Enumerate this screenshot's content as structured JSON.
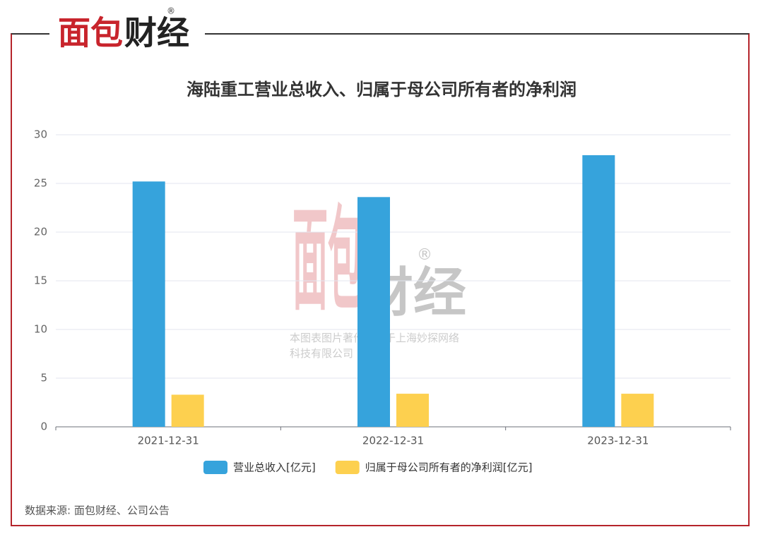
{
  "brand": [
    "面包",
    "财经"
  ],
  "brand_mark": "®",
  "watermark": "本图表图片著作权属于上海妙探网络科技有限公司",
  "source": "数据来源: 面包财经、公司公告",
  "chart_data": {
    "type": "bar",
    "title": "海陆重工营业总收入、归属于母公司所有者的净利润",
    "categories": [
      "2021-12-31",
      "2022-12-31",
      "2023-12-31"
    ],
    "series": [
      {
        "name": "营业总收入[亿元]",
        "color": "#36a3dc",
        "values": [
          25.2,
          23.6,
          27.9
        ]
      },
      {
        "name": "归属于母公司所有者的净利润[亿元]",
        "color": "#fdd04f",
        "values": [
          3.3,
          3.4,
          3.4
        ]
      }
    ],
    "ylim": [
      0,
      30
    ],
    "yticks": [
      0,
      5,
      10,
      15,
      20,
      25,
      30
    ],
    "grid": true,
    "legend": "bottom"
  }
}
